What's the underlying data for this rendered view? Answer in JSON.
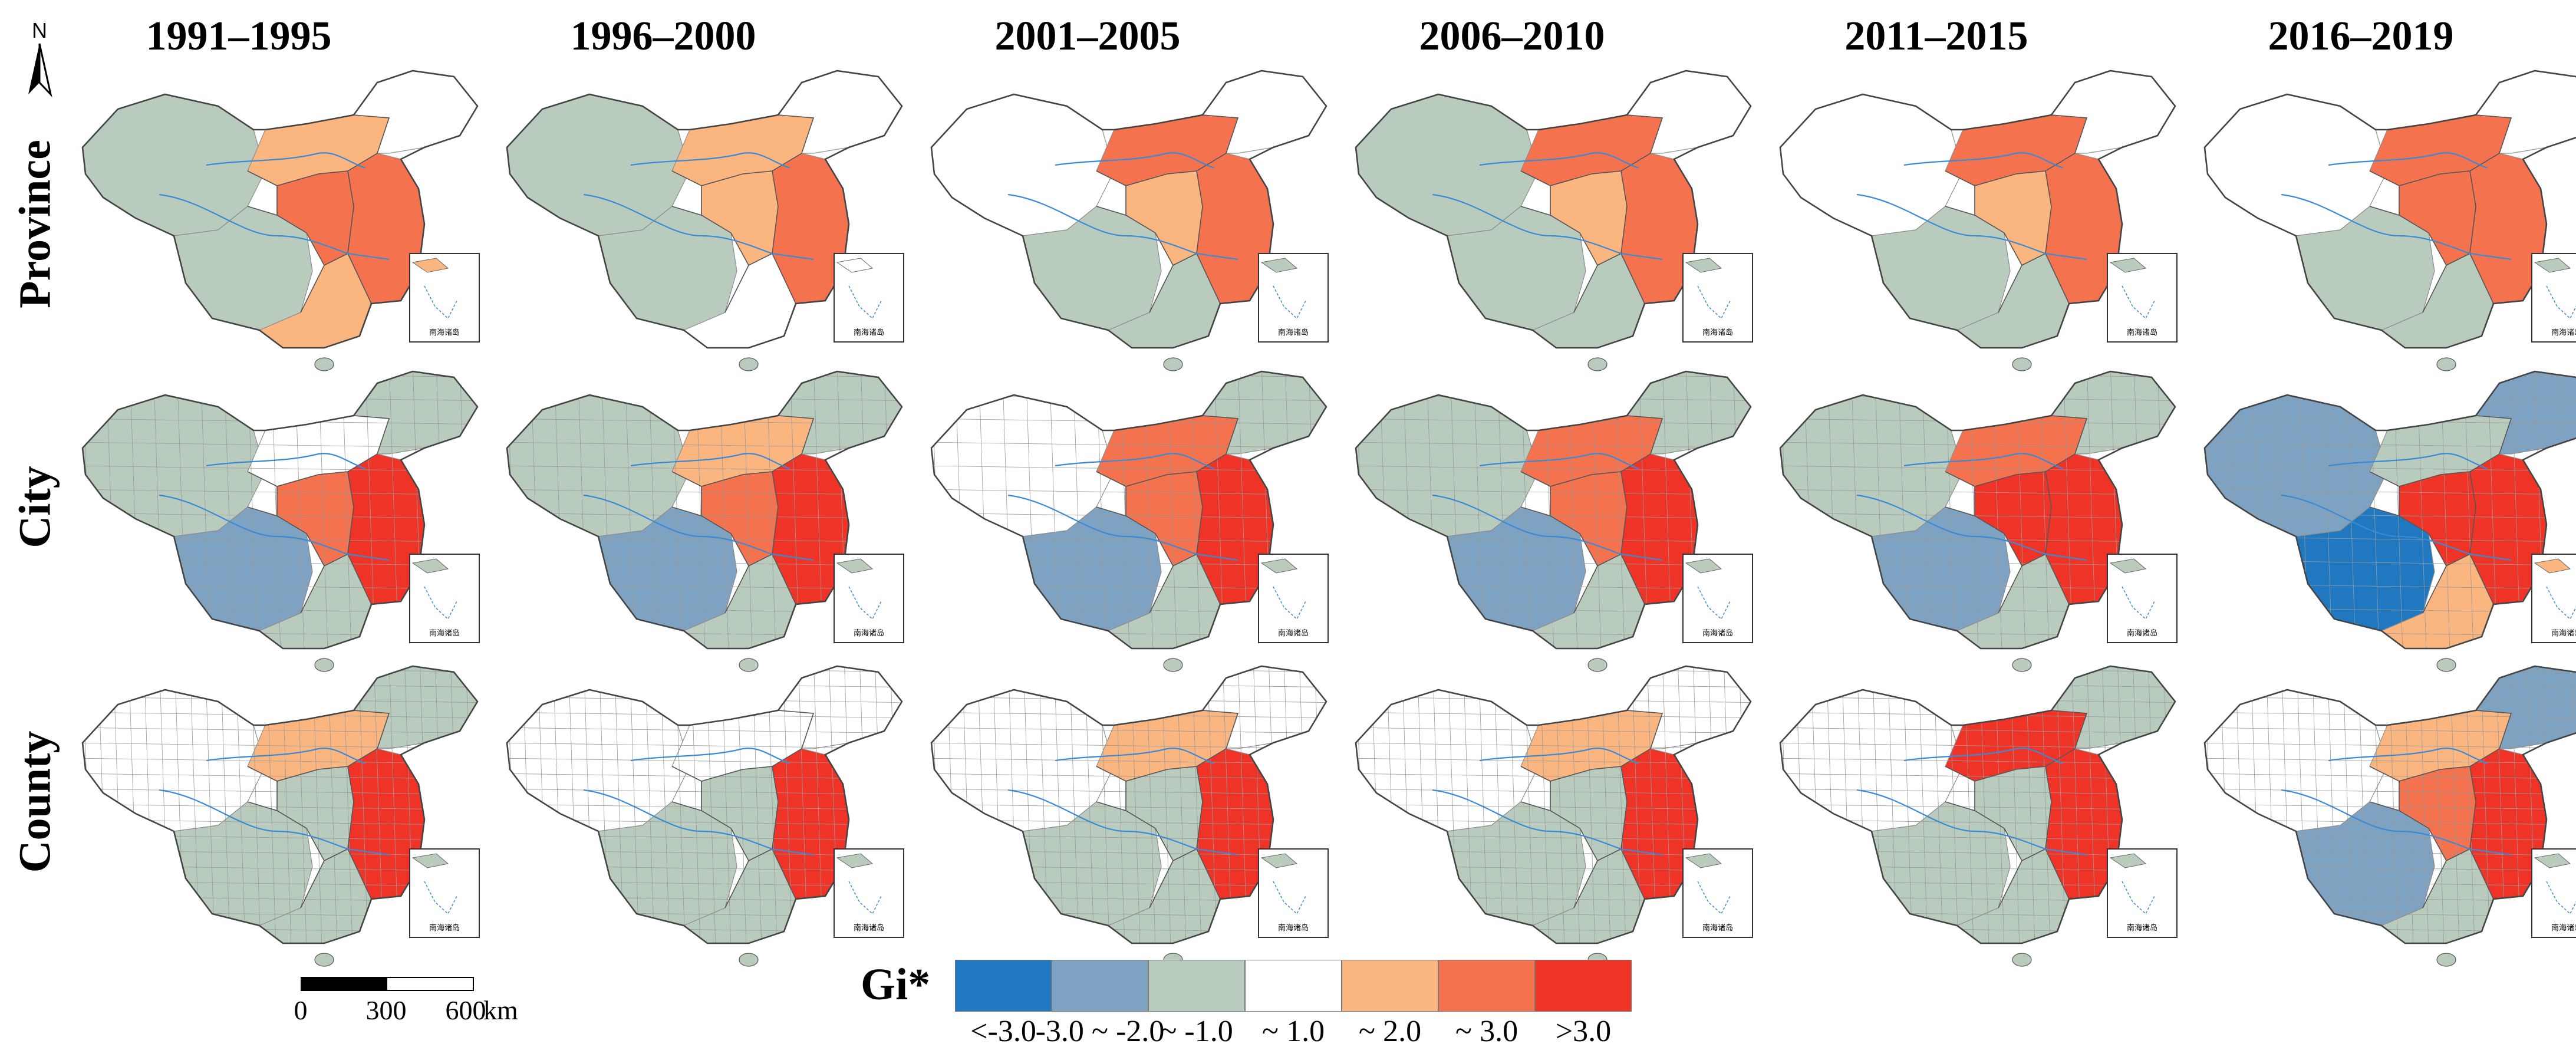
{
  "figure": {
    "column_titles": [
      "1991–1995",
      "1996–2000",
      "2001–2005",
      "2006–2010",
      "2011–2015",
      "2016–2019"
    ],
    "row_labels": [
      "Province",
      "City",
      "County"
    ],
    "north_label": "N",
    "inset_caption": "南海诸岛",
    "scale_bar": {
      "labels": [
        "0",
        "300",
        "600"
      ],
      "unit": "km"
    }
  },
  "legend": {
    "title": "Gi*",
    "classes": [
      {
        "color": "#1f78c0",
        "label": "<-3.0"
      },
      {
        "color": "#7da2c2",
        "label": "-3.0 ~ -2.0"
      },
      {
        "color": "#b9cbbd",
        "label": "~ -1.0"
      },
      {
        "color": "#ffffff",
        "label": "~ 1.0"
      },
      {
        "color": "#fbb57f",
        "label": "~ 2.0"
      },
      {
        "color": "#f4724e",
        "label": "~ 3.0"
      },
      {
        "color": "#ef3327",
        "label": ">3.0"
      }
    ]
  },
  "map_data": {
    "Province": [
      {
        "period": "1991–1995",
        "west": 2,
        "southwest": 2,
        "northeast": 3,
        "north": 4,
        "east": 5,
        "central": 5,
        "south": 4
      },
      {
        "period": "1996–2000",
        "west": 2,
        "southwest": 2,
        "northeast": 3,
        "north": 4,
        "east": 5,
        "central": 4,
        "south": 3
      },
      {
        "period": "2001–2005",
        "west": 3,
        "southwest": 2,
        "northeast": 3,
        "north": 5,
        "east": 5,
        "central": 4,
        "south": 2
      },
      {
        "period": "2006–2010",
        "west": 2,
        "southwest": 2,
        "northeast": 3,
        "north": 5,
        "east": 5,
        "central": 4,
        "south": 2
      },
      {
        "period": "2011–2015",
        "west": 3,
        "southwest": 2,
        "northeast": 3,
        "north": 5,
        "east": 5,
        "central": 4,
        "south": 2
      },
      {
        "period": "2016–2019",
        "west": 3,
        "southwest": 2,
        "northeast": 3,
        "north": 5,
        "east": 5,
        "central": 5,
        "south": 2
      }
    ],
    "City": [
      {
        "period": "1991–1995",
        "west": 2,
        "southwest": 1,
        "northeast": 2,
        "north": 3,
        "east": 6,
        "central": 5,
        "south": 2
      },
      {
        "period": "1996–2000",
        "west": 2,
        "southwest": 1,
        "northeast": 2,
        "north": 4,
        "east": 6,
        "central": 5,
        "south": 2
      },
      {
        "period": "2001–2005",
        "west": 3,
        "southwest": 1,
        "northeast": 2,
        "north": 5,
        "east": 6,
        "central": 5,
        "south": 2
      },
      {
        "period": "2006–2010",
        "west": 2,
        "southwest": 1,
        "northeast": 2,
        "north": 5,
        "east": 6,
        "central": 5,
        "south": 2
      },
      {
        "period": "2011–2015",
        "west": 2,
        "southwest": 1,
        "northeast": 2,
        "north": 5,
        "east": 6,
        "central": 6,
        "south": 2
      },
      {
        "period": "2016–2019",
        "west": 1,
        "southwest": 0,
        "northeast": 1,
        "north": 2,
        "east": 6,
        "central": 6,
        "south": 4
      }
    ],
    "County": [
      {
        "period": "1991–1995",
        "west": 3,
        "southwest": 2,
        "northeast": 2,
        "north": 4,
        "east": 6,
        "central": 2,
        "south": 2
      },
      {
        "period": "1996–2000",
        "west": 3,
        "southwest": 2,
        "northeast": 3,
        "north": 3,
        "east": 6,
        "central": 2,
        "south": 2
      },
      {
        "period": "2001–2005",
        "west": 3,
        "southwest": 2,
        "northeast": 3,
        "north": 4,
        "east": 6,
        "central": 2,
        "south": 2
      },
      {
        "period": "2006–2010",
        "west": 3,
        "southwest": 2,
        "northeast": 3,
        "north": 4,
        "east": 6,
        "central": 2,
        "south": 2
      },
      {
        "period": "2011–2015",
        "west": 3,
        "southwest": 2,
        "northeast": 2,
        "north": 6,
        "east": 6,
        "central": 2,
        "south": 2
      },
      {
        "period": "2016–2019",
        "west": 3,
        "southwest": 1,
        "northeast": 1,
        "north": 4,
        "east": 6,
        "central": 5,
        "south": 2
      }
    ]
  }
}
